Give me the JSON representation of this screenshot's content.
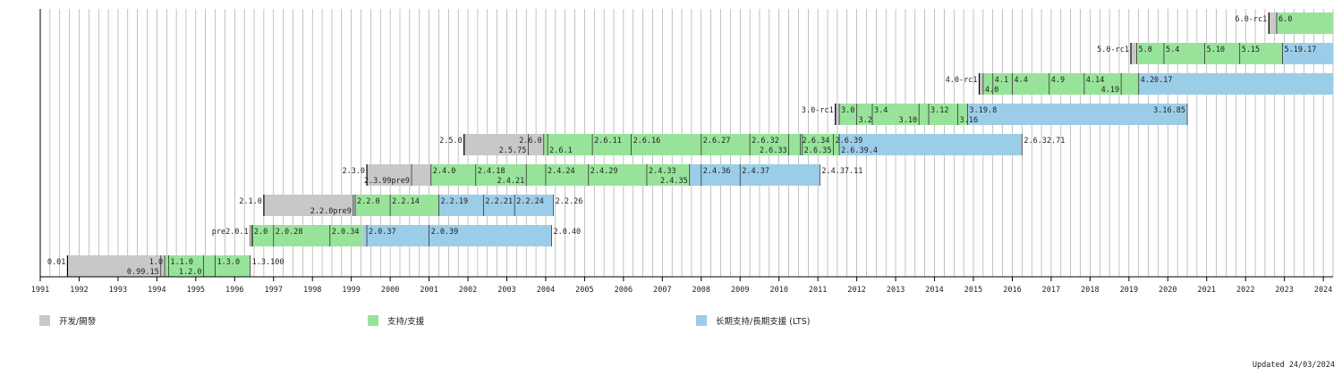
{
  "chart_data": {
    "type": "bar",
    "title": "",
    "xlabel": "",
    "ylabel": "",
    "x_ticks": [
      "1991",
      "1992",
      "1993",
      "1994",
      "1995",
      "1996",
      "1997",
      "1998",
      "1999",
      "2000",
      "2001",
      "2002",
      "2003",
      "2004",
      "2005",
      "2006",
      "2007",
      "2008",
      "2009",
      "2010",
      "2011",
      "2012",
      "2013",
      "2014",
      "2015",
      "2016",
      "2017",
      "2018",
      "2019",
      "2020",
      "2021",
      "2022",
      "2023",
      "2024"
    ],
    "xlim": [
      1991.0,
      2024.25
    ],
    "grid": "quarter-year vertical lines",
    "legend": [
      {
        "key": "dev",
        "label": "开发/開發",
        "color": "#c8c8c8"
      },
      {
        "key": "sup",
        "label": "支持/支援",
        "color": "#98e39a"
      },
      {
        "key": "lts",
        "label": "长期支持/長期支援 (LTS)",
        "color": "#9ccde8"
      }
    ],
    "series": [
      {
        "segments": [
          {
            "phase": "dev",
            "start": 1991.7,
            "end": 1994.2
          },
          {
            "phase": "sup",
            "start": 1994.2,
            "end": 1996.4
          }
        ],
        "labels": [
          {
            "text": "0.01",
            "x": 1991.7,
            "row": 0,
            "side": "left"
          },
          {
            "text": "1.0",
            "x": 1994.2,
            "row": 0,
            "side": "left"
          },
          {
            "text": "0.99.15",
            "x": 1994.1,
            "row": 1,
            "side": "left"
          },
          {
            "text": "1.1.0",
            "x": 1994.3,
            "row": 0,
            "side": "right"
          },
          {
            "text": "1.2.0",
            "x": 1995.2,
            "row": 1,
            "side": "left"
          },
          {
            "text": "1.3.0",
            "x": 1995.5,
            "row": 0,
            "side": "right"
          },
          {
            "text": "1.3.100",
            "x": 1996.4,
            "row": 0,
            "side": "right"
          }
        ]
      },
      {
        "segments": [
          {
            "phase": "sup",
            "start": 1996.45,
            "end": 1999.3
          },
          {
            "phase": "lts",
            "start": 1999.3,
            "end": 2004.15
          }
        ],
        "labels": [
          {
            "text": "pre2.0.1",
            "x": 1996.4,
            "row": 0,
            "side": "left"
          },
          {
            "text": "2.0",
            "x": 1996.45,
            "row": 0,
            "side": "right"
          },
          {
            "text": "2.0.28",
            "x": 1997.0,
            "row": 0,
            "side": "right"
          },
          {
            "text": "2.0.34",
            "x": 1998.45,
            "row": 0,
            "side": "right"
          },
          {
            "text": "2.0.37",
            "x": 1999.4,
            "row": 0,
            "side": "right"
          },
          {
            "text": "2.0.39",
            "x": 2001.0,
            "row": 0,
            "side": "right"
          },
          {
            "text": "2.0.40",
            "x": 2004.15,
            "row": 0,
            "side": "right"
          }
        ]
      },
      {
        "segments": [
          {
            "phase": "dev",
            "start": 1996.75,
            "end": 1999.1
          },
          {
            "phase": "sup",
            "start": 1999.1,
            "end": 2001.25
          },
          {
            "phase": "lts",
            "start": 2001.25,
            "end": 2004.2
          }
        ],
        "labels": [
          {
            "text": "2.1.0",
            "x": 1996.75,
            "row": 0,
            "side": "left"
          },
          {
            "text": "2.2.0pre9",
            "x": 1999.05,
            "row": 1,
            "side": "left"
          },
          {
            "text": "2.2.0",
            "x": 1999.1,
            "row": 0,
            "side": "right"
          },
          {
            "text": "2.2.14",
            "x": 2000.0,
            "row": 0,
            "side": "right"
          },
          {
            "text": "2.2.19",
            "x": 2001.25,
            "row": 0,
            "side": "right"
          },
          {
            "text": "2.2.21",
            "x": 2002.4,
            "row": 0,
            "side": "right"
          },
          {
            "text": "2.2.24",
            "x": 2003.2,
            "row": 0,
            "side": "right"
          },
          {
            "text": "2.2.26",
            "x": 2004.2,
            "row": 0,
            "side": "right"
          }
        ]
      },
      {
        "segments": [
          {
            "phase": "dev",
            "start": 1999.4,
            "end": 2001.05
          },
          {
            "phase": "sup",
            "start": 2001.05,
            "end": 2007.7
          },
          {
            "phase": "lts",
            "start": 2007.7,
            "end": 2011.05
          }
        ],
        "labels": [
          {
            "text": "2.3.0",
            "x": 1999.4,
            "row": 0,
            "side": "left"
          },
          {
            "text": "2.3.99pre9",
            "x": 2000.55,
            "row": 1,
            "side": "left"
          },
          {
            "text": "2.4.0",
            "x": 2001.05,
            "row": 0,
            "side": "right"
          },
          {
            "text": "2.4.18",
            "x": 2002.2,
            "row": 0,
            "side": "right"
          },
          {
            "text": "2.4.21",
            "x": 2003.5,
            "row": 1,
            "side": "left"
          },
          {
            "text": "2.4.24",
            "x": 2004.0,
            "row": 0,
            "side": "right"
          },
          {
            "text": "2.4.29",
            "x": 2005.1,
            "row": 0,
            "side": "right"
          },
          {
            "text": "2.4.33",
            "x": 2006.6,
            "row": 0,
            "side": "right"
          },
          {
            "text": "2.4.35",
            "x": 2007.7,
            "row": 1,
            "side": "left"
          },
          {
            "text": "2.4.36",
            "x": 2008.0,
            "row": 0,
            "side": "right"
          },
          {
            "text": "2.4.37",
            "x": 2009.0,
            "row": 0,
            "side": "right"
          },
          {
            "text": "2.4.37.11",
            "x": 2011.05,
            "row": 0,
            "side": "right"
          }
        ]
      },
      {
        "segments": [
          {
            "phase": "dev",
            "start": 2001.9,
            "end": 2003.95
          },
          {
            "phase": "sup",
            "start": 2003.95,
            "end": 2011.55
          },
          {
            "phase": "lts",
            "start": 2011.55,
            "end": 2016.25
          }
        ],
        "labels": [
          {
            "text": "2.5.0",
            "x": 2001.9,
            "row": 0,
            "side": "left"
          },
          {
            "text": "2.5.75",
            "x": 2003.55,
            "row": 1,
            "side": "left"
          },
          {
            "text": "2.6.0",
            "x": 2003.95,
            "row": 0,
            "side": "left"
          },
          {
            "text": "2.6.1",
            "x": 2004.05,
            "row": 1,
            "side": "right"
          },
          {
            "text": "2.6.11",
            "x": 2005.2,
            "row": 0,
            "side": "right"
          },
          {
            "text": "2.6.16",
            "x": 2006.2,
            "row": 0,
            "side": "right"
          },
          {
            "text": "2.6.27",
            "x": 2008.0,
            "row": 0,
            "side": "right"
          },
          {
            "text": "2.6.32",
            "x": 2009.25,
            "row": 0,
            "side": "right"
          },
          {
            "text": "2.6.33",
            "x": 2010.25,
            "row": 1,
            "side": "left"
          },
          {
            "text": "2.6.34",
            "x": 2010.55,
            "row": 0,
            "side": "right"
          },
          {
            "text": "2.6.35",
            "x": 2010.6,
            "row": 1,
            "side": "right"
          },
          {
            "text": "2.6.39",
            "x": 2011.4,
            "row": 0,
            "side": "right"
          },
          {
            "text": "2.6.39.4",
            "x": 2011.55,
            "row": 1,
            "side": "right"
          },
          {
            "text": "2.6.32.71",
            "x": 2016.25,
            "row": 0,
            "side": "right"
          }
        ]
      },
      {
        "segments": [
          {
            "phase": "dev",
            "start": 2011.45,
            "end": 2011.55
          },
          {
            "phase": "sup",
            "start": 2011.55,
            "end": 2014.85
          },
          {
            "phase": "lts",
            "start": 2014.85,
            "end": 2020.5
          }
        ],
        "labels": [
          {
            "text": "3.0-rc1",
            "x": 2011.45,
            "row": 0,
            "side": "left"
          },
          {
            "text": "3.0",
            "x": 2011.55,
            "row": 0,
            "side": "right"
          },
          {
            "text": "3.2",
            "x": 2012.0,
            "row": 1,
            "side": "right"
          },
          {
            "text": "3.4",
            "x": 2012.4,
            "row": 0,
            "side": "right"
          },
          {
            "text": "3.10",
            "x": 2013.6,
            "row": 1,
            "side": "left"
          },
          {
            "text": "3.12",
            "x": 2013.85,
            "row": 0,
            "side": "right"
          },
          {
            "text": "3.16",
            "x": 2014.6,
            "row": 1,
            "side": "right"
          },
          {
            "text": "3.19.8",
            "x": 2014.85,
            "row": 0,
            "side": "right"
          },
          {
            "text": "3.16.85",
            "x": 2020.5,
            "row": 0,
            "side": "left"
          }
        ]
      },
      {
        "segments": [
          {
            "phase": "dev",
            "start": 2015.15,
            "end": 2015.25
          },
          {
            "phase": "sup",
            "start": 2015.25,
            "end": 2019.25
          },
          {
            "phase": "lts",
            "start": 2019.25,
            "end": 2024.25
          }
        ],
        "labels": [
          {
            "text": "4.0-rc1",
            "x": 2015.15,
            "row": 0,
            "side": "left"
          },
          {
            "text": "4.0",
            "x": 2015.25,
            "row": 1,
            "side": "right"
          },
          {
            "text": "4.1",
            "x": 2015.5,
            "row": 0,
            "side": "right"
          },
          {
            "text": "4.4",
            "x": 2016.0,
            "row": 0,
            "side": "right"
          },
          {
            "text": "4.9",
            "x": 2016.95,
            "row": 0,
            "side": "right"
          },
          {
            "text": "4.14",
            "x": 2017.85,
            "row": 0,
            "side": "right"
          },
          {
            "text": "4.19",
            "x": 2018.8,
            "row": 1,
            "side": "left"
          },
          {
            "text": "4.20.17",
            "x": 2019.25,
            "row": 0,
            "side": "right"
          }
        ]
      },
      {
        "segments": [
          {
            "phase": "dev",
            "start": 2019.05,
            "end": 2019.2
          },
          {
            "phase": "sup",
            "start": 2019.2,
            "end": 2022.95
          },
          {
            "phase": "lts",
            "start": 2022.95,
            "end": 2024.25
          }
        ],
        "labels": [
          {
            "text": "5.0-rc1",
            "x": 2019.05,
            "row": 0,
            "side": "left"
          },
          {
            "text": "5.0",
            "x": 2019.2,
            "row": 0,
            "side": "right"
          },
          {
            "text": "5.4",
            "x": 2019.9,
            "row": 0,
            "side": "right"
          },
          {
            "text": "5.10",
            "x": 2020.95,
            "row": 0,
            "side": "right"
          },
          {
            "text": "5.15",
            "x": 2021.85,
            "row": 0,
            "side": "right"
          },
          {
            "text": "5.19.17",
            "x": 2022.95,
            "row": 0,
            "side": "right"
          }
        ]
      },
      {
        "segments": [
          {
            "phase": "dev",
            "start": 2022.6,
            "end": 2022.8
          },
          {
            "phase": "sup",
            "start": 2022.8,
            "end": 2024.25
          }
        ],
        "labels": [
          {
            "text": "6.0-rc1",
            "x": 2022.6,
            "row": 0,
            "side": "left"
          },
          {
            "text": "6.0",
            "x": 2022.8,
            "row": 0,
            "side": "right"
          }
        ]
      }
    ]
  },
  "footer": {
    "updated": "Updated 24/03/2024"
  }
}
